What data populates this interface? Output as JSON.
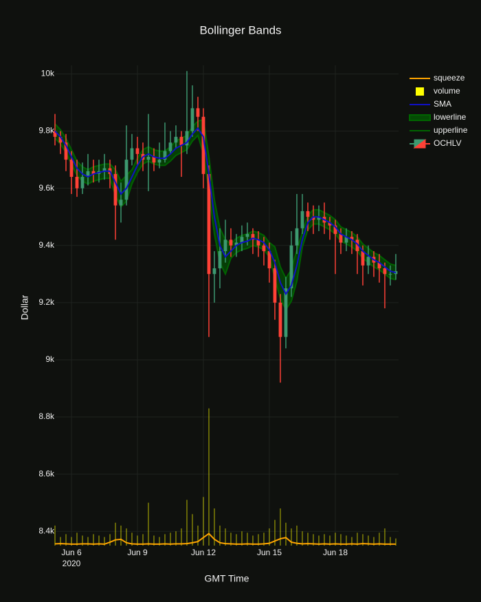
{
  "chart_data": {
    "type": "candlestick",
    "title": "Bollinger Bands",
    "xlabel": "GMT Time",
    "ylabel": "Dollar",
    "x": [
      "2020-06-05 06:00",
      "2020-06-05 12:00",
      "2020-06-05 18:00",
      "2020-06-06 00:00",
      "2020-06-06 06:00",
      "2020-06-06 12:00",
      "2020-06-06 18:00",
      "2020-06-07 00:00",
      "2020-06-07 06:00",
      "2020-06-07 12:00",
      "2020-06-07 18:00",
      "2020-06-08 00:00",
      "2020-06-08 06:00",
      "2020-06-08 12:00",
      "2020-06-08 18:00",
      "2020-06-09 00:00",
      "2020-06-09 06:00",
      "2020-06-09 12:00",
      "2020-06-09 18:00",
      "2020-06-10 00:00",
      "2020-06-10 06:00",
      "2020-06-10 12:00",
      "2020-06-10 18:00",
      "2020-06-11 00:00",
      "2020-06-11 06:00",
      "2020-06-11 12:00",
      "2020-06-11 18:00",
      "2020-06-12 00:00",
      "2020-06-12 06:00",
      "2020-06-12 12:00",
      "2020-06-12 18:00",
      "2020-06-13 00:00",
      "2020-06-13 06:00",
      "2020-06-13 12:00",
      "2020-06-13 18:00",
      "2020-06-14 00:00",
      "2020-06-14 06:00",
      "2020-06-14 12:00",
      "2020-06-14 18:00",
      "2020-06-15 00:00",
      "2020-06-15 06:00",
      "2020-06-15 12:00",
      "2020-06-15 18:00",
      "2020-06-16 00:00",
      "2020-06-16 06:00",
      "2020-06-16 12:00",
      "2020-06-16 18:00",
      "2020-06-17 00:00",
      "2020-06-17 06:00",
      "2020-06-17 12:00",
      "2020-06-17 18:00",
      "2020-06-18 00:00",
      "2020-06-18 06:00",
      "2020-06-18 12:00",
      "2020-06-18 18:00",
      "2020-06-19 00:00",
      "2020-06-19 06:00",
      "2020-06-19 12:00",
      "2020-06-19 18:00",
      "2020-06-20 00:00",
      "2020-06-20 06:00",
      "2020-06-20 12:00",
      "2020-06-20 18:00"
    ],
    "xlim": [
      "2020-06-05 06:00",
      "2020-06-20 21:00"
    ],
    "xticks": [
      {
        "value": "2020-06-06 00:00",
        "label": "Jun 6"
      },
      {
        "value": "2020-06-09 00:00",
        "label": "Jun 9"
      },
      {
        "value": "2020-06-12 00:00",
        "label": "Jun 12"
      },
      {
        "value": "2020-06-15 00:00",
        "label": "Jun 15"
      },
      {
        "value": "2020-06-18 00:00",
        "label": "Jun 18"
      }
    ],
    "xtick_year": "2020",
    "ylim": [
      8350,
      10030
    ],
    "yticks": [
      {
        "value": 8400,
        "label": "8.4k"
      },
      {
        "value": 8600,
        "label": "8.6k"
      },
      {
        "value": 8800,
        "label": "8.8k"
      },
      {
        "value": 9000,
        "label": "9k"
      },
      {
        "value": 9200,
        "label": "9.2k"
      },
      {
        "value": 9400,
        "label": "9.4k"
      },
      {
        "value": 9600,
        "label": "9.6k"
      },
      {
        "value": 9800,
        "label": "9.8k"
      },
      {
        "value": 10000,
        "label": "10k"
      }
    ],
    "grid": true,
    "legend_position": "right",
    "series": [
      {
        "name": "squeeze",
        "type": "line",
        "color": "#ffa500",
        "values": [
          8356,
          8357,
          8356,
          8355,
          8355,
          8356,
          8356,
          8355,
          8356,
          8355,
          8362,
          8370,
          8372,
          8360,
          8356,
          8355,
          8355,
          8356,
          8355,
          8355,
          8356,
          8355,
          8356,
          8356,
          8357,
          8360,
          8364,
          8378,
          8392,
          8372,
          8360,
          8357,
          8356,
          8355,
          8355,
          8356,
          8355,
          8355,
          8356,
          8358,
          8366,
          8374,
          8378,
          8362,
          8358,
          8356,
          8357,
          8356,
          8355,
          8356,
          8355,
          8356,
          8355,
          8355,
          8356,
          8355,
          8357,
          8356,
          8355,
          8356,
          8355,
          8355,
          8355
        ]
      },
      {
        "name": "volume",
        "type": "bar",
        "color": "#ffff00",
        "values": [
          8420,
          8380,
          8390,
          8380,
          8395,
          8385,
          8380,
          8390,
          8385,
          8380,
          8390,
          8430,
          8420,
          8410,
          8395,
          8385,
          8390,
          8500,
          8385,
          8380,
          8390,
          8395,
          8400,
          8410,
          8510,
          8460,
          8420,
          8520,
          8830,
          8480,
          8420,
          8410,
          8395,
          8390,
          8400,
          8395,
          8385,
          8390,
          8395,
          8410,
          8440,
          8480,
          8430,
          8410,
          8420,
          8400,
          8395,
          8390,
          8385,
          8390,
          8385,
          8395,
          8390,
          8385,
          8380,
          8395,
          8390,
          8385,
          8380,
          8395,
          8410,
          8380,
          8375
        ]
      },
      {
        "name": "SMA",
        "type": "line",
        "color": "#1010c8",
        "values": [
          9800,
          9780,
          9750,
          9710,
          9670,
          9650,
          9640,
          9650,
          9655,
          9660,
          9660,
          9620,
          9580,
          9600,
          9640,
          9680,
          9710,
          9720,
          9710,
          9705,
          9705,
          9720,
          9740,
          9750,
          9760,
          9790,
          9810,
          9780,
          9650,
          9500,
          9400,
          9360,
          9380,
          9400,
          9410,
          9415,
          9425,
          9420,
          9410,
          9385,
          9340,
          9270,
          9230,
          9260,
          9330,
          9420,
          9480,
          9500,
          9500,
          9490,
          9480,
          9465,
          9440,
          9430,
          9420,
          9405,
          9380,
          9365,
          9350,
          9340,
          9325,
          9310,
          9305
        ]
      },
      {
        "name": "lowerline",
        "type": "line",
        "color": "#006400",
        "fill_to": "upperline",
        "values": [
          9775,
          9755,
          9725,
          9685,
          9645,
          9625,
          9615,
          9625,
          9630,
          9635,
          9635,
          9575,
          9535,
          9555,
          9615,
          9655,
          9685,
          9695,
          9685,
          9680,
          9680,
          9695,
          9715,
          9725,
          9735,
          9765,
          9785,
          9720,
          9590,
          9440,
          9340,
          9300,
          9355,
          9375,
          9385,
          9390,
          9400,
          9395,
          9385,
          9360,
          9285,
          9215,
          9175,
          9205,
          9275,
          9395,
          9455,
          9475,
          9475,
          9465,
          9455,
          9440,
          9415,
          9405,
          9395,
          9380,
          9355,
          9340,
          9325,
          9315,
          9300,
          9285,
          9280
        ]
      },
      {
        "name": "upperline",
        "type": "line",
        "color": "#006400",
        "values": [
          9825,
          9805,
          9775,
          9735,
          9695,
          9675,
          9665,
          9675,
          9680,
          9685,
          9685,
          9665,
          9625,
          9645,
          9665,
          9705,
          9735,
          9745,
          9735,
          9730,
          9730,
          9745,
          9765,
          9775,
          9785,
          9815,
          9835,
          9840,
          9710,
          9560,
          9460,
          9420,
          9405,
          9425,
          9435,
          9440,
          9450,
          9445,
          9435,
          9410,
          9395,
          9325,
          9285,
          9315,
          9385,
          9445,
          9505,
          9525,
          9525,
          9515,
          9505,
          9490,
          9465,
          9455,
          9445,
          9430,
          9405,
          9390,
          9375,
          9365,
          9350,
          9335,
          9330
        ]
      },
      {
        "name": "OCHLV",
        "type": "candlestick",
        "increasing_color": "#3d9970",
        "decreasing_color": "#ff4136",
        "open": [
          9800,
          9780,
          9760,
          9700,
          9640,
          9600,
          9640,
          9660,
          9650,
          9660,
          9670,
          9650,
          9540,
          9560,
          9700,
          9740,
          9720,
          9700,
          9710,
          9690,
          9700,
          9730,
          9760,
          9780,
          9750,
          9800,
          9880,
          9850,
          9650,
          9300,
          9320,
          9380,
          9420,
          9400,
          9410,
          9430,
          9440,
          9420,
          9400,
          9380,
          9320,
          9200,
          9080,
          9250,
          9400,
          9460,
          9520,
          9500,
          9490,
          9500,
          9480,
          9470,
          9440,
          9410,
          9430,
          9420,
          9380,
          9330,
          9360,
          9340,
          9320,
          9300,
          9300
        ],
        "high": [
          9860,
          9800,
          9790,
          9730,
          9700,
          9690,
          9720,
          9700,
          9700,
          9720,
          9700,
          9680,
          9620,
          9820,
          9790,
          9780,
          9760,
          9860,
          9740,
          9760,
          9830,
          9800,
          9820,
          9800,
          10010,
          9960,
          9920,
          9880,
          9680,
          9380,
          9460,
          9490,
          9460,
          9440,
          9470,
          9480,
          9460,
          9450,
          9430,
          9410,
          9350,
          9230,
          9290,
          9450,
          9580,
          9580,
          9550,
          9540,
          9540,
          9550,
          9500,
          9490,
          9460,
          9460,
          9450,
          9440,
          9400,
          9400,
          9380,
          9370,
          9340,
          9330,
          9370
        ],
        "low": [
          9750,
          9720,
          9660,
          9580,
          9570,
          9580,
          9610,
          9620,
          9620,
          9630,
          9600,
          9420,
          9480,
          9540,
          9680,
          9680,
          9660,
          9590,
          9660,
          9670,
          9690,
          9720,
          9740,
          9640,
          9720,
          9780,
          9800,
          9600,
          9080,
          9200,
          9250,
          9340,
          9360,
          9360,
          9380,
          9400,
          9370,
          9360,
          9330,
          9270,
          9140,
          8920,
          9040,
          9220,
          9370,
          9440,
          9450,
          9440,
          9450,
          9440,
          9420,
          9300,
          9370,
          9380,
          9370,
          9300,
          9260,
          9300,
          9290,
          9270,
          9180,
          9260,
          9280
        ],
        "close": [
          9780,
          9760,
          9700,
          9640,
          9600,
          9640,
          9660,
          9650,
          9660,
          9670,
          9650,
          9540,
          9560,
          9700,
          9740,
          9720,
          9700,
          9710,
          9690,
          9700,
          9730,
          9760,
          9780,
          9750,
          9800,
          9880,
          9850,
          9650,
          9300,
          9320,
          9380,
          9420,
          9400,
          9410,
          9430,
          9440,
          9420,
          9400,
          9380,
          9320,
          9200,
          9080,
          9250,
          9400,
          9460,
          9520,
          9500,
          9490,
          9500,
          9480,
          9470,
          9440,
          9410,
          9430,
          9420,
          9380,
          9330,
          9360,
          9340,
          9320,
          9300,
          9300,
          9310
        ]
      }
    ]
  }
}
